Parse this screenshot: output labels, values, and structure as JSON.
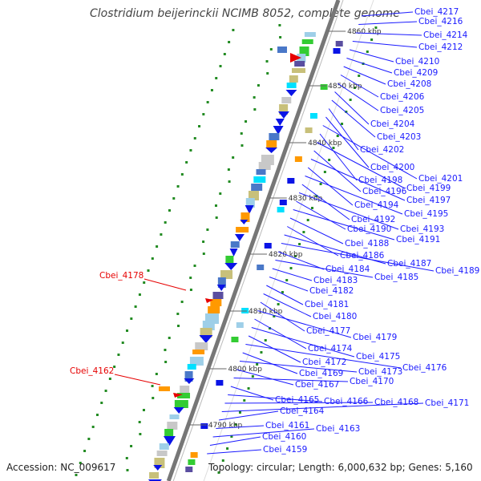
{
  "title": "Clostridium beijerinckii NCIMB 8052, complete genome",
  "accession": "Accession: NC_009617",
  "topology": "Topology: circular; Length: 6,000,632 bp; Genes: 5,160",
  "tick_labels": [
    "4860 kbp",
    "4850 kbp",
    "4840 kbp",
    "4830 kbp",
    "4820 kbp",
    "4810 kbp",
    "4800 kbp",
    "4790 kbp"
  ],
  "gene_labels": [
    "Cbei_4217",
    "Cbei_4216",
    "Cbei_4214",
    "Cbei_4212",
    "Cbei_4210",
    "Cbei_4209",
    "Cbei_4208",
    "Cbei_4206",
    "Cbei_4205",
    "Cbei_4204",
    "Cbei_4203",
    "Cbei_4202",
    "Cbei_4200",
    "Cbei_4201",
    "Cbei_4198",
    "Cbei_4199",
    "Cbei_4196",
    "Cbei_4197",
    "Cbei_4194",
    "Cbei_4195",
    "Cbei_4192",
    "Cbei_4193",
    "Cbei_4190",
    "Cbei_4191",
    "Cbei_4188",
    "Cbei_4186",
    "Cbei_4187",
    "Cbei_4189",
    "Cbei_4184",
    "Cbei_4185",
    "Cbei_4183",
    "Cbei_4182",
    "Cbei_4181",
    "Cbei_4180",
    "Cbei_4177",
    "Cbei_4179",
    "Cbei_4174",
    "Cbei_4175",
    "Cbei_4172",
    "Cbei_4176",
    "Cbei_4169",
    "Cbei_4173",
    "Cbei_4167",
    "Cbei_4170",
    "Cbei_4165",
    "Cbei_4166",
    "Cbei_4168",
    "Cbei_4171",
    "Cbei_4164",
    "Cbei_4161",
    "Cbei_4163",
    "Cbei_4160",
    "Cbei_4159"
  ],
  "highlighted_labels": [
    "Cbei_4178",
    "Cbei_4162"
  ],
  "colors": {
    "forward_gene": "#0a14e6",
    "label_line": "#1a1aff",
    "highlight": "#e60000",
    "backbone": "#777777",
    "gc_marks": "#228b22"
  }
}
